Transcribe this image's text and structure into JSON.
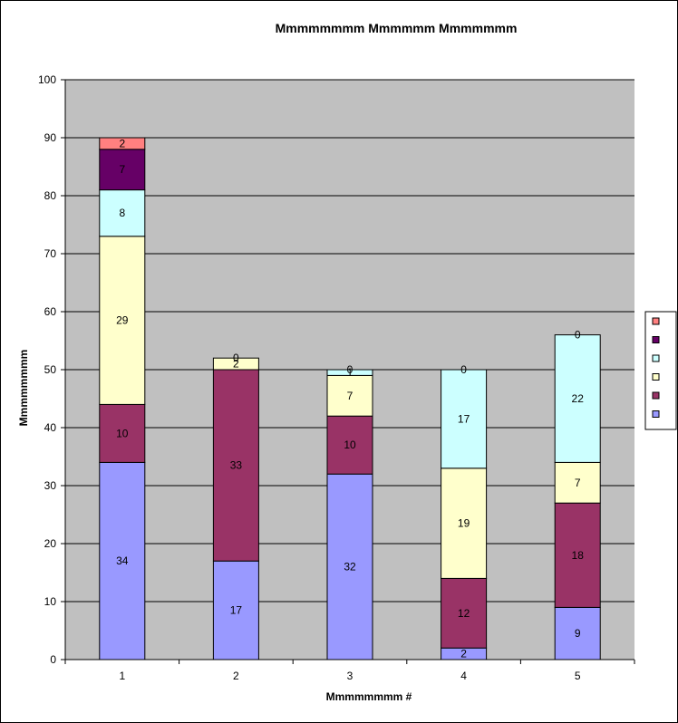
{
  "chart_data": {
    "type": "bar",
    "stacked": true,
    "title": "Mmmmmmmm Mmmmmm Mmmmmmm",
    "xlabel": "Mmmmmmmm #",
    "ylabel": "Mmmmmmmm",
    "ylim": [
      0,
      100
    ],
    "yticks": [
      0,
      10,
      20,
      30,
      40,
      50,
      60,
      70,
      80,
      90,
      100
    ],
    "categories": [
      "1",
      "2",
      "3",
      "4",
      "5"
    ],
    "grid": true,
    "legend": "right",
    "series": [
      {
        "values": [
          34,
          17,
          32,
          2,
          9
        ],
        "color": "#9999ff"
      },
      {
        "values": [
          10,
          33,
          10,
          12,
          18
        ],
        "color": "#993366"
      },
      {
        "values": [
          29,
          2,
          7,
          19,
          7
        ],
        "color": "#ffffcc"
      },
      {
        "values": [
          8,
          0,
          1,
          17,
          22
        ],
        "color": "#ccffff"
      },
      {
        "values": [
          7,
          0,
          0,
          0,
          0
        ],
        "color": "#660066"
      },
      {
        "values": [
          2,
          0,
          0,
          0,
          0
        ],
        "color": "#ff8080"
      }
    ],
    "colors": {
      "plot_bg": "#c0c0c0",
      "grid": "#000000",
      "bar_border": "#000000"
    }
  }
}
